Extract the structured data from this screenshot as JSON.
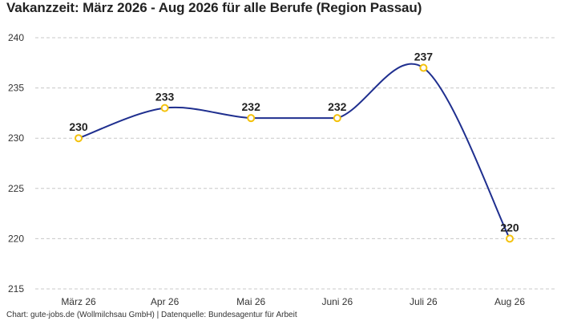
{
  "chart_data": {
    "type": "line",
    "title": "Vakanzzeit: März 2026 - Aug 2026 für alle Berufe (Region Passau)",
    "categories": [
      "März 26",
      "Apr 26",
      "Mai 26",
      "Juni 26",
      "Juli 26",
      "Aug 26"
    ],
    "series": [
      {
        "values": [
          230,
          233,
          232,
          232,
          237,
          220
        ]
      }
    ],
    "y_ticks": [
      215,
      220,
      225,
      230,
      235,
      240
    ],
    "ylim": [
      215,
      240
    ],
    "grid": true,
    "smooth": true,
    "colors": {
      "line": "#1f2f8f",
      "marker_stroke": "#f4c20d",
      "marker_fill": "#ffffff"
    }
  },
  "footer": "Chart: gute-jobs.de (Wollmilchsau GmbH) | Datenquelle: Bundesagentur für Arbeit"
}
